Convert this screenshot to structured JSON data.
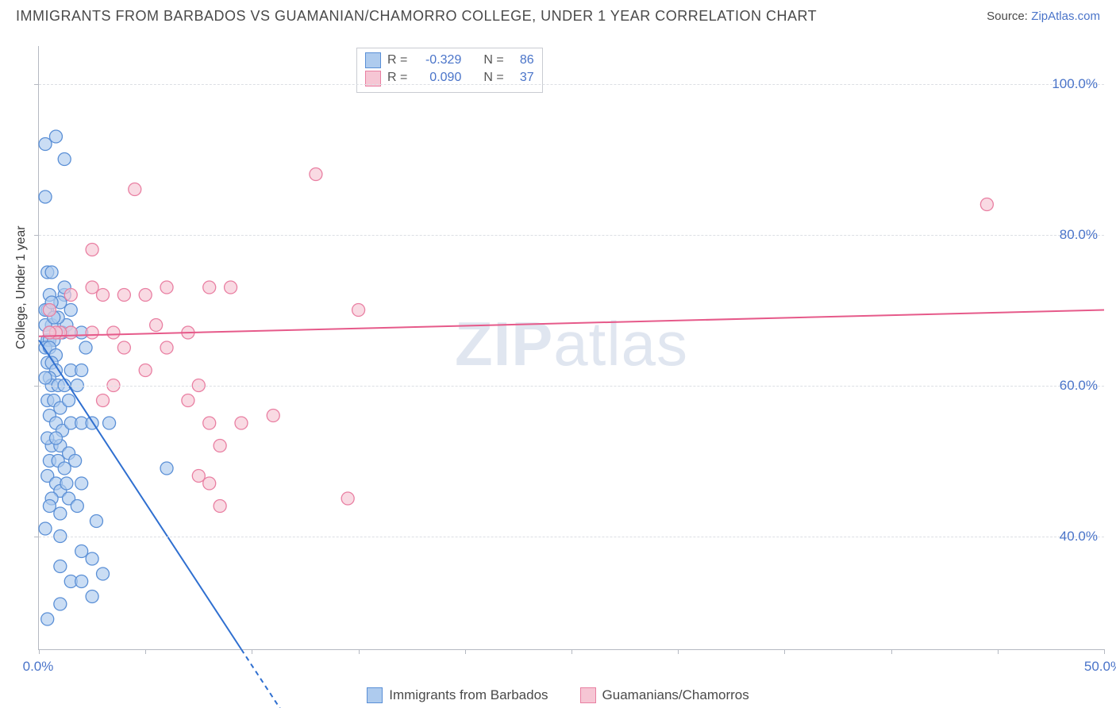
{
  "title": "IMMIGRANTS FROM BARBADOS VS GUAMANIAN/CHAMORRO COLLEGE, UNDER 1 YEAR CORRELATION CHART",
  "source": {
    "label": "Source:",
    "link_text": "ZipAtlas.com"
  },
  "watermark": {
    "bold": "ZIP",
    "rest": "atlas"
  },
  "y_axis_label": "College, Under 1 year",
  "chart": {
    "type": "scatter",
    "xlim": [
      0,
      50
    ],
    "ylim": [
      25,
      105
    ],
    "x_ticks": [
      0,
      5,
      10,
      15,
      20,
      25,
      30,
      35,
      40,
      45,
      50
    ],
    "x_tick_labels": {
      "0": "0.0%",
      "50": "50.0%"
    },
    "y_ticks": [
      40,
      60,
      80,
      100
    ],
    "y_tick_labels": {
      "40": "40.0%",
      "60": "60.0%",
      "80": "80.0%",
      "100": "100.0%"
    },
    "background_color": "#ffffff",
    "grid_color": "#dcdfe4",
    "axis_color": "#b5b9c2",
    "marker_radius": 8,
    "marker_stroke_width": 1.3,
    "trend_line_width": 2
  },
  "series": {
    "barbados": {
      "label": "Immigrants from Barbados",
      "fill": "#aecbee",
      "stroke": "#5a8fd6",
      "line_color": "#2f6fd0",
      "R": "-0.329",
      "N": "86",
      "trend": {
        "x1": 0,
        "y1": 66,
        "x2": 9.5,
        "y2": 25,
        "dashed_x2": 11.5
      },
      "points": [
        [
          0.3,
          92
        ],
        [
          0.8,
          93
        ],
        [
          1.2,
          90
        ],
        [
          0.3,
          85
        ],
        [
          0.4,
          75
        ],
        [
          0.6,
          75
        ],
        [
          0.5,
          72
        ],
        [
          0.4,
          70
        ],
        [
          0.3,
          70
        ],
        [
          0.6,
          68
        ],
        [
          0.3,
          68
        ],
        [
          0.4,
          66
        ],
        [
          0.5,
          66
        ],
        [
          0.7,
          66
        ],
        [
          0.3,
          65
        ],
        [
          0.5,
          65
        ],
        [
          0.8,
          64
        ],
        [
          0.4,
          63
        ],
        [
          0.6,
          63
        ],
        [
          1.0,
          67
        ],
        [
          1.1,
          67
        ],
        [
          1.3,
          68
        ],
        [
          1.5,
          67
        ],
        [
          0.8,
          62
        ],
        [
          0.5,
          61
        ],
        [
          0.6,
          60
        ],
        [
          0.9,
          60
        ],
        [
          1.2,
          60
        ],
        [
          0.4,
          58
        ],
        [
          0.7,
          58
        ],
        [
          1.0,
          57
        ],
        [
          1.4,
          58
        ],
        [
          0.5,
          56
        ],
        [
          0.8,
          55
        ],
        [
          1.1,
          54
        ],
        [
          1.5,
          55
        ],
        [
          2.0,
          55
        ],
        [
          2.5,
          55
        ],
        [
          3.3,
          55
        ],
        [
          0.6,
          52
        ],
        [
          1.0,
          52
        ],
        [
          1.4,
          51
        ],
        [
          0.5,
          50
        ],
        [
          0.9,
          50
        ],
        [
          1.2,
          49
        ],
        [
          0.4,
          48
        ],
        [
          0.8,
          47
        ],
        [
          1.0,
          46
        ],
        [
          0.6,
          45
        ],
        [
          1.4,
          45
        ],
        [
          0.5,
          44
        ],
        [
          1.0,
          43
        ],
        [
          2.0,
          38
        ],
        [
          2.5,
          37
        ],
        [
          3.0,
          35
        ],
        [
          1.5,
          34
        ],
        [
          2.0,
          34
        ],
        [
          2.5,
          32
        ],
        [
          1.0,
          31
        ],
        [
          0.4,
          29
        ],
        [
          6.0,
          49
        ],
        [
          1.2,
          72
        ],
        [
          1.5,
          70
        ],
        [
          2.0,
          67
        ],
        [
          2.2,
          65
        ],
        [
          0.9,
          69
        ],
        [
          1.0,
          67
        ],
        [
          0.3,
          41
        ],
        [
          1.8,
          44
        ],
        [
          1.0,
          40
        ],
        [
          2.7,
          42
        ],
        [
          1.5,
          62
        ],
        [
          2.0,
          62
        ],
        [
          0.4,
          53
        ],
        [
          0.8,
          53
        ],
        [
          1.2,
          73
        ],
        [
          1.0,
          71
        ],
        [
          1.3,
          47
        ],
        [
          1.0,
          36
        ],
        [
          2.0,
          47
        ],
        [
          1.7,
          50
        ],
        [
          0.5,
          67
        ],
        [
          0.6,
          71
        ],
        [
          0.7,
          69
        ],
        [
          0.3,
          61
        ],
        [
          1.8,
          60
        ]
      ]
    },
    "guam": {
      "label": "Guamanians/Chamorros",
      "fill": "#f6c6d4",
      "stroke": "#e97fa2",
      "line_color": "#e65a8a",
      "R": "0.090",
      "N": "37",
      "trend": {
        "x1": 0,
        "y1": 66.5,
        "x2": 50,
        "y2": 70
      },
      "points": [
        [
          4.5,
          86
        ],
        [
          2.5,
          78
        ],
        [
          13.0,
          88
        ],
        [
          44.5,
          84
        ],
        [
          2.5,
          73
        ],
        [
          3.0,
          72
        ],
        [
          4.0,
          72
        ],
        [
          5.0,
          72
        ],
        [
          6.0,
          73
        ],
        [
          8.0,
          73
        ],
        [
          9.0,
          73
        ],
        [
          5.5,
          68
        ],
        [
          7.0,
          67
        ],
        [
          3.5,
          67
        ],
        [
          2.5,
          67
        ],
        [
          1.5,
          67
        ],
        [
          1.0,
          67
        ],
        [
          0.8,
          67
        ],
        [
          0.5,
          67
        ],
        [
          0.5,
          70
        ],
        [
          1.5,
          72
        ],
        [
          4.0,
          65
        ],
        [
          6.0,
          65
        ],
        [
          5.0,
          62
        ],
        [
          7.5,
          60
        ],
        [
          7.0,
          58
        ],
        [
          3.5,
          60
        ],
        [
          3.0,
          58
        ],
        [
          8.0,
          55
        ],
        [
          9.5,
          55
        ],
        [
          8.5,
          52
        ],
        [
          7.5,
          48
        ],
        [
          8.0,
          47
        ],
        [
          8.5,
          44
        ],
        [
          15.0,
          70
        ],
        [
          14.5,
          45
        ],
        [
          11.0,
          56
        ]
      ]
    }
  },
  "stats_legend": {
    "rows": [
      {
        "series": "barbados",
        "r_label": "R =",
        "n_label": "N ="
      },
      {
        "series": "guam",
        "r_label": "R =",
        "n_label": "N ="
      }
    ]
  }
}
